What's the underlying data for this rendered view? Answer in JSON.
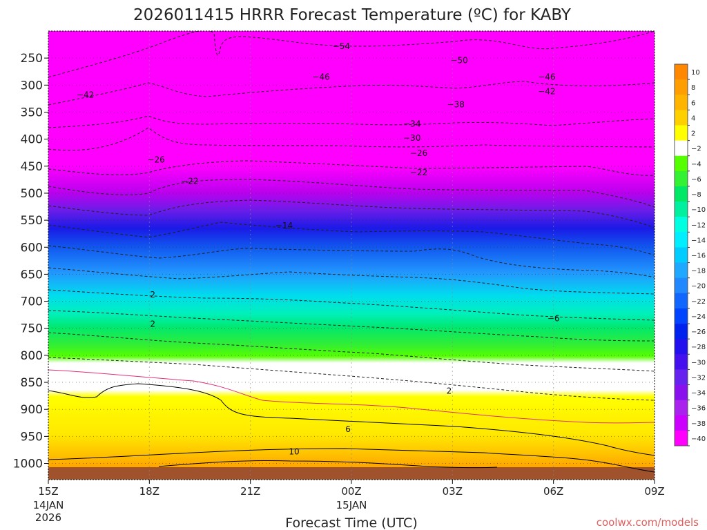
{
  "chart_data": {
    "type": "heatmap",
    "title": "2026011415 HRRR Forecast Temperature (ºC) for KABY",
    "xlabel": "Forecast Time (UTC)",
    "ylabel": "",
    "x_ticks": [
      {
        "label": "15Z",
        "hour": 0,
        "sub": [
          "14JAN",
          "2026"
        ]
      },
      {
        "label": "18Z",
        "hour": 3,
        "sub": []
      },
      {
        "label": "21Z",
        "hour": 6,
        "sub": []
      },
      {
        "label": "00Z",
        "hour": 9,
        "sub": [
          "15JAN"
        ]
      },
      {
        "label": "03Z",
        "hour": 12,
        "sub": []
      },
      {
        "label": "06Z",
        "hour": 15,
        "sub": []
      },
      {
        "label": "09Z",
        "hour": 18,
        "sub": []
      }
    ],
    "xlim": [
      0,
      18
    ],
    "y_ticks": [
      250,
      300,
      350,
      400,
      450,
      500,
      550,
      600,
      650,
      700,
      750,
      800,
      850,
      900,
      950,
      1000
    ],
    "ylim": [
      1030,
      200
    ],
    "colorbar": {
      "labels": [
        10,
        8,
        6,
        4,
        2,
        -2,
        -4,
        -6,
        -8,
        -10,
        -12,
        -14,
        -16,
        -18,
        -20,
        -22,
        -24,
        -26,
        -28,
        -30,
        -32,
        -34,
        -36,
        -38,
        -40
      ],
      "colors": [
        "#ff8800",
        "#ff9e00",
        "#ffb400",
        "#ffd000",
        "#ffff00",
        "#ffffff",
        "#55ff00",
        "#33f233",
        "#00e866",
        "#00f0a0",
        "#00ffe0",
        "#00eeff",
        "#00ccff",
        "#1ea8ff",
        "#2288ff",
        "#1166ff",
        "#0044ff",
        "#0022ee",
        "#2211ee",
        "#4411ee",
        "#6622ee",
        "#8811ee",
        "#aa22ee",
        "#cc00ff",
        "#ff00ff"
      ]
    },
    "contour_labels": [
      {
        "text": "-54",
        "t": 8.7,
        "p": 228
      },
      {
        "text": "-50",
        "t": 12.2,
        "p": 254
      },
      {
        "text": "-46",
        "t": 8.1,
        "p": 285
      },
      {
        "text": "-46",
        "t": 14.8,
        "p": 285
      },
      {
        "text": "-42",
        "t": 1.1,
        "p": 318
      },
      {
        "text": "-42",
        "t": 14.8,
        "p": 312
      },
      {
        "text": "-38",
        "t": 12.1,
        "p": 336
      },
      {
        "text": "-34",
        "t": 10.8,
        "p": 372
      },
      {
        "text": "-30",
        "t": 10.8,
        "p": 398
      },
      {
        "text": "-26",
        "t": 3.2,
        "p": 438
      },
      {
        "text": "-26",
        "t": 11.0,
        "p": 426
      },
      {
        "text": "-22",
        "t": 4.2,
        "p": 478
      },
      {
        "text": "-22",
        "t": 11.0,
        "p": 462
      },
      {
        "text": "-14",
        "t": 7.0,
        "p": 560
      },
      {
        "text": "-6",
        "t": 15.0,
        "p": 732
      },
      {
        "text": "2",
        "t": 3.1,
        "p": 688
      },
      {
        "text": "2",
        "t": 3.1,
        "p": 742
      },
      {
        "text": "2",
        "t": 11.9,
        "p": 866
      },
      {
        "text": "6",
        "t": 8.9,
        "p": 937
      },
      {
        "text": "10",
        "t": 7.3,
        "p": 978
      }
    ],
    "surface": "ground below ~1005 hPa",
    "grid": true,
    "legend": "right"
  },
  "credit": "coolwx.com/models"
}
